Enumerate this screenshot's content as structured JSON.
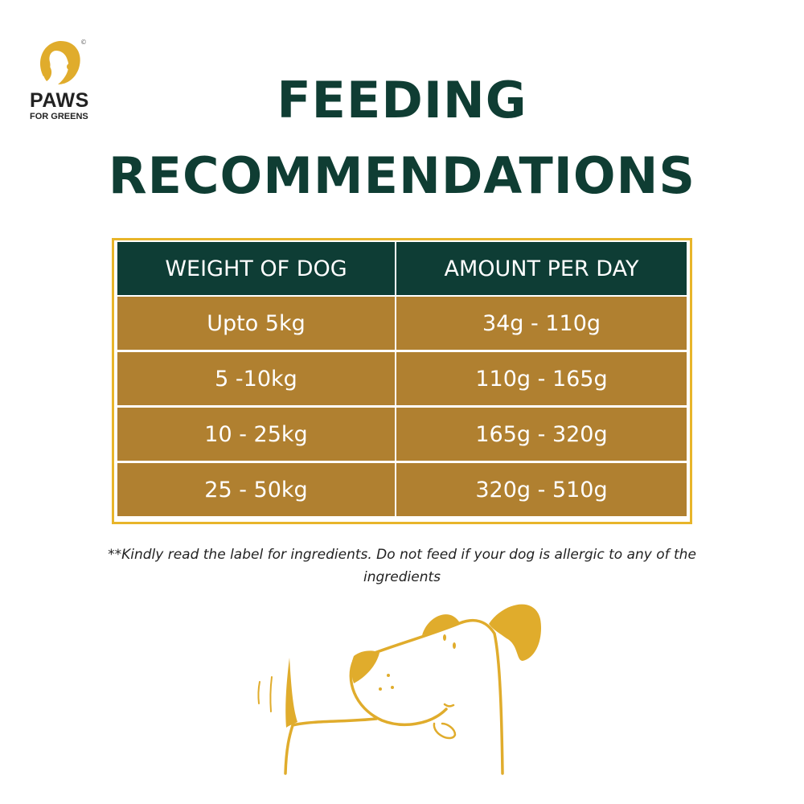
{
  "brand": {
    "name": "PAWS",
    "tagline": "FOR GREENS",
    "mark": "©"
  },
  "title": {
    "line1": "FEEDING",
    "line2": "RECOMMENDATIONS"
  },
  "table": {
    "headers": [
      "WEIGHT OF DOG",
      "AMOUNT PER DAY"
    ],
    "rows": [
      [
        "Upto 5kg",
        "34g - 110g"
      ],
      [
        "5 -10kg",
        "110g - 165g"
      ],
      [
        "10 - 25kg",
        "165g - 320g"
      ],
      [
        "25 - 50kg",
        "320g - 510g"
      ]
    ]
  },
  "note": {
    "line1": "**Kindly read the label for ingredients. Do not feed if your dog is allergic to any of the",
    "line2": "ingredients"
  },
  "colors": {
    "green": "#0f3d33",
    "gold": "#e0ac2c",
    "brown": "#b08030"
  }
}
